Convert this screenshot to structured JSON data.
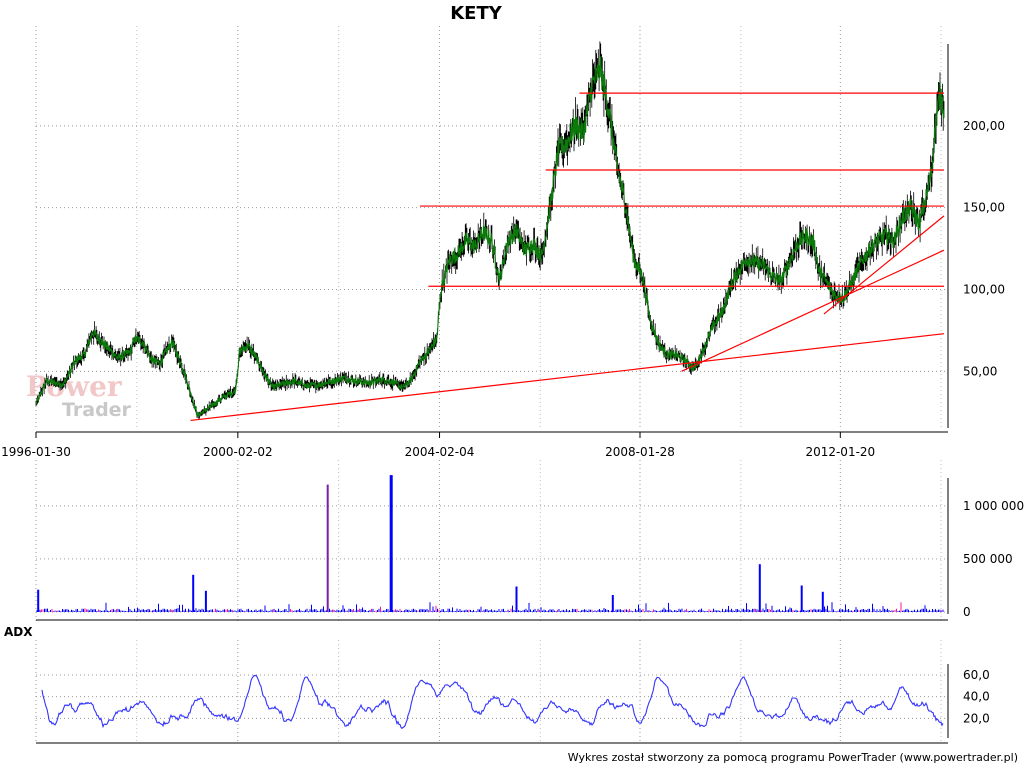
{
  "chart_data": [
    {
      "type": "line",
      "title": "KETY",
      "x_tick_labels": [
        "1996-01-30",
        "2000-02-02",
        "2004-02-04",
        "2008-01-28",
        "2012-01-20"
      ],
      "y_tick_labels": [
        "50,00",
        "100,00",
        "150,00",
        "200,00"
      ],
      "y_ticks": [
        50,
        100,
        150,
        200
      ],
      "xlim": [
        "1996-01-30",
        "2014-02-10"
      ],
      "ylim": [
        16,
        250
      ],
      "grid": true,
      "colors": {
        "price": "#0b7a0b",
        "support_resistance": "#ff0000",
        "price_bars": "#000000"
      },
      "series": [
        {
          "x": [
            "1996-01-30",
            "1996-04",
            "1996-08",
            "1996-11",
            "1997-01",
            "1997-03",
            "1997-06",
            "1997-09",
            "1997-12",
            "1998-01",
            "1998-03",
            "1998-05",
            "1998-07",
            "1998-09",
            "1998-10",
            "1999-01",
            "1999-04",
            "1999-07",
            "1999-10",
            "2000-01",
            "2000-02",
            "2000-04",
            "2000-06",
            "2000-08",
            "2000-10",
            "2000-12",
            "2001-03",
            "2001-06",
            "2001-09",
            "2001-12",
            "2002-03",
            "2002-06",
            "2002-09",
            "2002-12",
            "2003-02",
            "2003-05",
            "2003-07",
            "2003-09",
            "2003-11",
            "2004-01",
            "2004-02",
            "2004-04",
            "2004-06",
            "2004-08",
            "2004-10",
            "2004-12",
            "2005-02",
            "2005-04",
            "2005-06",
            "2005-08",
            "2005-10",
            "2005-12",
            "2006-02",
            "2006-04",
            "2006-06",
            "2006-08",
            "2006-10",
            "2006-12",
            "2007-02",
            "2007-04",
            "2007-06",
            "2007-08",
            "2007-10",
            "2007-12",
            "2008-02",
            "2008-04",
            "2008-06",
            "2008-08",
            "2008-10",
            "2008-12",
            "2009-02",
            "2009-03",
            "2009-05",
            "2009-07",
            "2009-09",
            "2009-11",
            "2010-01",
            "2010-03",
            "2010-05",
            "2010-07",
            "2010-09",
            "2010-11",
            "2011-01",
            "2011-03",
            "2011-05",
            "2011-07",
            "2011-08",
            "2011-10",
            "2011-12",
            "2012-02",
            "2012-04",
            "2012-06",
            "2012-08",
            "2012-10",
            "2012-12",
            "2013-02",
            "2013-04",
            "2013-06",
            "2013-08",
            "2013-10",
            "2013-11",
            "2013-12",
            "2014-01",
            "2014-02-10"
          ],
          "y": [
            30,
            44,
            42,
            57,
            60,
            74,
            66,
            58,
            62,
            70,
            68,
            57,
            55,
            64,
            68,
            48,
            23,
            28,
            34,
            38,
            62,
            66,
            58,
            48,
            40,
            42,
            44,
            41,
            42,
            44,
            46,
            44,
            43,
            45,
            44,
            40,
            45,
            56,
            62,
            70,
            100,
            118,
            122,
            130,
            126,
            135,
            130,
            106,
            130,
            136,
            124,
            128,
            120,
            150,
            185,
            190,
            200,
            196,
            225,
            235,
            210,
            175,
            152,
            118,
            108,
            80,
            66,
            60,
            60,
            57,
            52,
            54,
            66,
            78,
            86,
            102,
            112,
            119,
            116,
            115,
            108,
            105,
            117,
            128,
            133,
            128,
            112,
            104,
            96,
            95,
            105,
            116,
            124,
            130,
            133,
            130,
            144,
            150,
            140,
            160,
            175,
            205,
            220,
            210
          ]
        }
      ],
      "annotations": {
        "horizontal_lines": [
          220,
          173,
          151,
          102
        ],
        "trend_lines": [
          {
            "from": [
              "1999-02-24",
              20
            ],
            "to": [
              "2014-02-10",
              73
            ]
          },
          {
            "from": [
              "2008-11-24",
              50
            ],
            "to": [
              "2014-02-10",
              124
            ]
          },
          {
            "from": [
              "2011-09-23",
              85
            ],
            "to": [
              "2014-02-10",
              145
            ]
          }
        ]
      }
    },
    {
      "type": "bar",
      "title": "",
      "y_tick_labels": [
        "0",
        "500 000",
        "1 000 000"
      ],
      "y_ticks": [
        0,
        500000,
        1000000
      ],
      "ylim": [
        0,
        1300000
      ],
      "colors": {
        "volume": "#0000ff",
        "volume_alt": "#ff1493"
      },
      "spikes": [
        {
          "x": "1996-02",
          "value": 210000
        },
        {
          "x": "1999-03",
          "value": 350000
        },
        {
          "x": "1999-06",
          "value": 200000
        },
        {
          "x": "2001-11",
          "value": 1200000
        },
        {
          "x": "2003-02",
          "value": 1290000
        },
        {
          "x": "2005-08",
          "value": 240000
        },
        {
          "x": "2007-07",
          "value": 160000
        },
        {
          "x": "2010-06",
          "value": 450000
        },
        {
          "x": "2011-04",
          "value": 250000
        },
        {
          "x": "2011-09",
          "value": 190000
        }
      ]
    },
    {
      "type": "line",
      "title": "ADX",
      "y_tick_labels": [
        "20,0",
        "40,0",
        "60,0"
      ],
      "y_ticks": [
        20,
        40,
        60
      ],
      "ylim": [
        0,
        72
      ],
      "colors": {
        "adx": "#3333ff"
      },
      "peaks": [
        {
          "x": "1996-01",
          "value": 55
        },
        {
          "x": "1999-07",
          "value": 28
        },
        {
          "x": "2000-05",
          "value": 54
        },
        {
          "x": "2001-05",
          "value": 55
        },
        {
          "x": "2003-09",
          "value": 62
        },
        {
          "x": "2004-05",
          "value": 66
        },
        {
          "x": "2005-07",
          "value": 45
        },
        {
          "x": "2008-05",
          "value": 62
        },
        {
          "x": "2010-02",
          "value": 58
        },
        {
          "x": "2012-11",
          "value": 50
        },
        {
          "x": "2013-03",
          "value": 48
        }
      ]
    }
  ],
  "footer": {
    "text": "Wykres został stworzony za pomocą programu PowerTrader (www.powertrader.pl)"
  },
  "logo": {
    "line1": "Power",
    "line2": "Trader"
  }
}
